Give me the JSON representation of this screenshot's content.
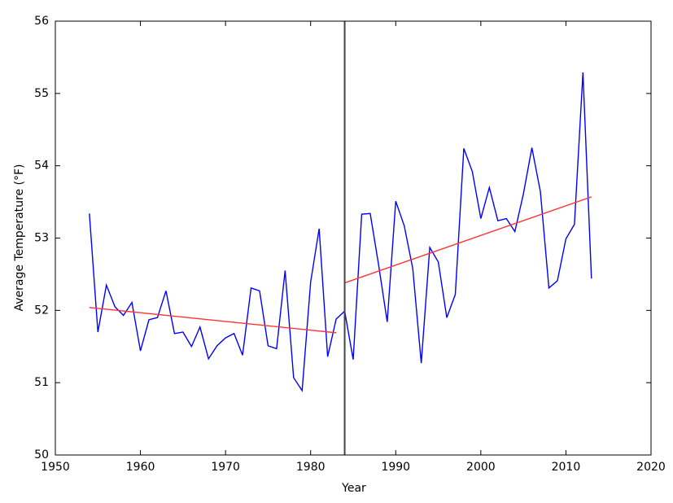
{
  "chart_data": {
    "type": "line",
    "xlabel": "Year",
    "ylabel": "Average Temperature (°F)",
    "xlim": [
      1950,
      2020
    ],
    "xticks": [
      1950,
      1960,
      1970,
      1980,
      1990,
      2000,
      2010,
      2020
    ],
    "ylim": [
      50,
      56
    ],
    "yticks": [
      50,
      51,
      52,
      53,
      54,
      55,
      56
    ],
    "vline": 1984,
    "series": [
      {
        "color": "#0000ff",
        "x": [
          1954,
          1955,
          1956,
          1957,
          1958,
          1959,
          1960,
          1961,
          1962,
          1963,
          1964,
          1965,
          1966,
          1967,
          1968,
          1969,
          1970,
          1971,
          1972,
          1973,
          1974,
          1975,
          1976,
          1977,
          1978,
          1979,
          1980,
          1981,
          1982,
          1983,
          1984,
          1985,
          1986,
          1987,
          1988,
          1989,
          1990,
          1991,
          1992,
          1993,
          1994,
          1995,
          1996,
          1997,
          1998,
          1999,
          2000,
          2001,
          2002,
          2003,
          2004,
          2005,
          2006,
          2007,
          2008,
          2009,
          2010,
          2011,
          2012,
          2013
        ],
        "values": [
          53.34,
          51.7,
          52.35,
          52.05,
          51.93,
          52.11,
          51.44,
          51.87,
          51.9,
          52.27,
          51.68,
          51.7,
          51.5,
          51.77,
          51.33,
          51.51,
          51.62,
          51.68,
          51.38,
          52.31,
          52.27,
          51.51,
          51.47,
          52.55,
          51.07,
          50.89,
          52.39,
          53.13,
          51.36,
          51.88,
          51.99,
          51.32,
          53.33,
          53.34,
          52.62,
          51.84,
          53.51,
          53.17,
          52.58,
          51.27,
          52.87,
          52.67,
          51.9,
          52.22,
          54.24,
          53.92,
          53.27,
          53.7,
          53.24,
          53.27,
          53.09,
          53.61,
          54.25,
          53.64,
          52.31,
          52.41,
          52.99,
          53.19,
          55.29,
          52.44
        ]
      },
      {
        "color": "#ff3333",
        "x": [
          1954,
          1983
        ],
        "values": [
          52.04,
          51.69
        ]
      },
      {
        "color": "#ff3333",
        "x": [
          1984,
          2013
        ],
        "values": [
          52.38,
          53.57
        ]
      }
    ]
  }
}
